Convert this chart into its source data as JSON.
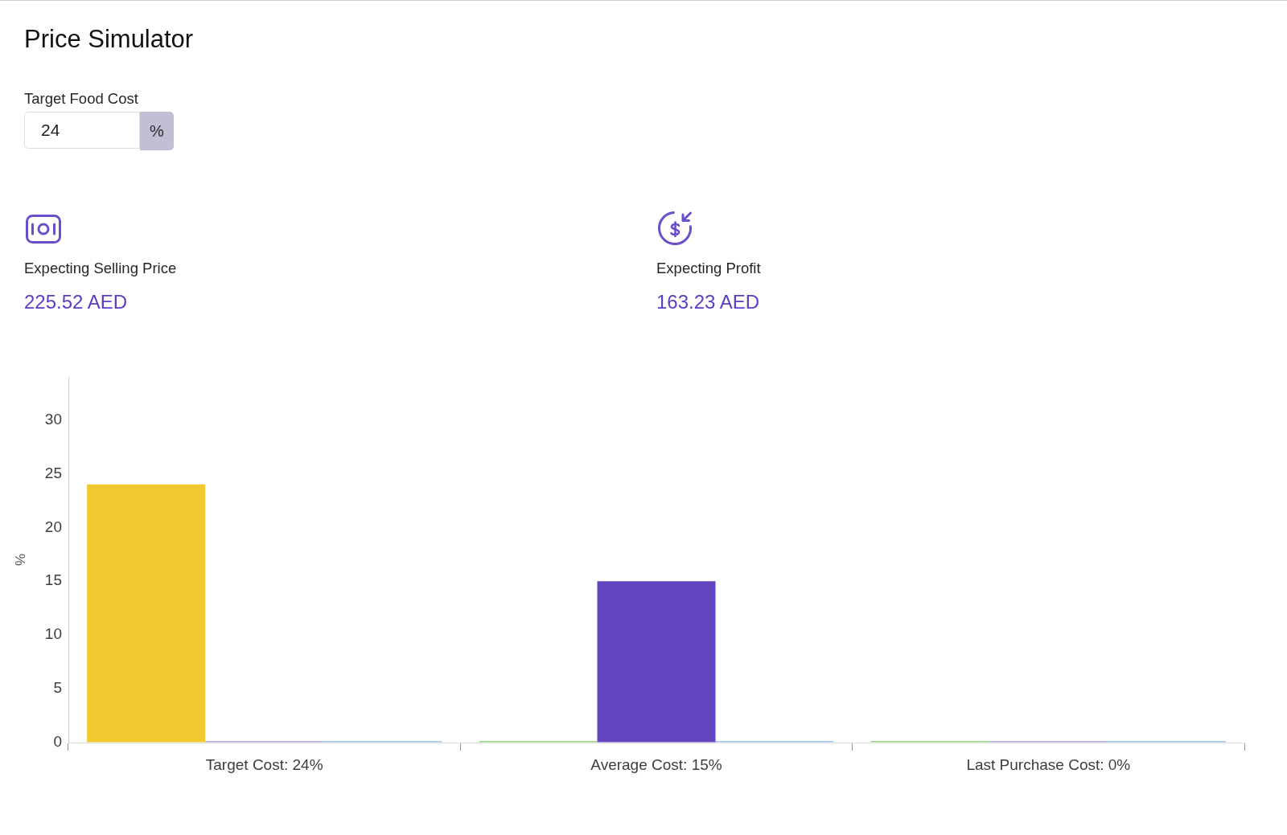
{
  "chart_data": {
    "type": "bar",
    "title": "Price Simulator",
    "annotations": [
      "Target Food Cost",
      "24",
      "%",
      "Expecting Selling Price",
      "225.52 AED",
      "Expecting Profit",
      "163.23 AED"
    ],
    "categories": [
      "Target Cost: 24%",
      "Average Cost: 15%",
      "Last Purchase Cost: 0%"
    ],
    "series": [
      {
        "colors": [
          "#efc92e",
          "#90d77c",
          "#90d77c"
        ],
        "values": [
          24,
          0,
          0
        ]
      },
      {
        "colors": [
          "#b9a5da",
          "#6244bf",
          "#b9a5da"
        ],
        "values": [
          0,
          15,
          0
        ]
      },
      {
        "color": "#9dc4ef",
        "values": [
          0,
          0,
          0
        ]
      }
    ],
    "ylabel": "%",
    "ylim": [
      0,
      34
    ],
    "yticks": [
      0,
      5,
      10,
      15,
      20,
      25,
      30
    ]
  }
}
